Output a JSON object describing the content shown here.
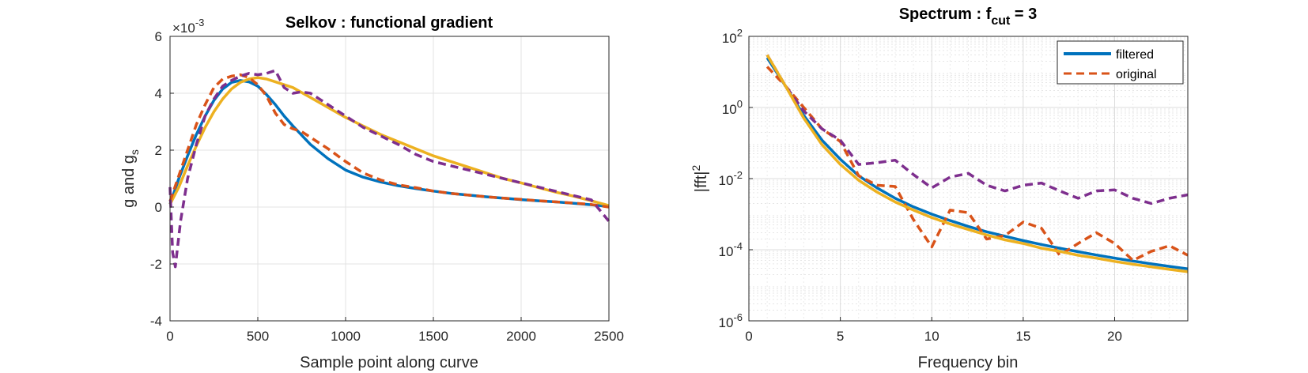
{
  "chart_data": [
    {
      "type": "line",
      "title": "Selkov : functional gradient",
      "xlabel": "Sample point along curve",
      "ylabel_main": "g and g",
      "ylabel_sub": "s",
      "y_exponent_label": "×10",
      "y_exponent_power": "-3",
      "xlim": [
        0,
        2500
      ],
      "ylim": [
        -4,
        6
      ],
      "xticks": [
        "0",
        "500",
        "1000",
        "1500",
        "2000",
        "2500"
      ],
      "yticks": [
        "-4",
        "-2",
        "0",
        "2",
        "4",
        "6"
      ],
      "grid": true,
      "legend": "none",
      "series": [
        {
          "color": "#0072BD",
          "style": "solid",
          "x": [
            0,
            50,
            100,
            150,
            200,
            250,
            300,
            350,
            400,
            450,
            500,
            550,
            600,
            650,
            700,
            800,
            900,
            1000,
            1100,
            1200,
            1300,
            1400,
            1500,
            1600,
            1700,
            1800,
            1900,
            2000,
            2100,
            2200,
            2300,
            2400,
            2500
          ],
          "y": [
            0.1,
            1.0,
            1.8,
            2.55,
            3.2,
            3.75,
            4.15,
            4.38,
            4.45,
            4.4,
            4.25,
            3.95,
            3.6,
            3.2,
            2.85,
            2.2,
            1.7,
            1.3,
            1.05,
            0.88,
            0.75,
            0.65,
            0.56,
            0.48,
            0.42,
            0.36,
            0.31,
            0.26,
            0.22,
            0.18,
            0.13,
            0.08,
            0.02
          ]
        },
        {
          "color": "#EDB120",
          "style": "solid",
          "x": [
            0,
            50,
            100,
            150,
            200,
            250,
            300,
            350,
            400,
            450,
            500,
            550,
            600,
            700,
            800,
            900,
            1000,
            1100,
            1200,
            1300,
            1400,
            1500,
            1600,
            1700,
            1800,
            1900,
            2000,
            2100,
            2200,
            2300,
            2400,
            2500
          ],
          "y": [
            0.1,
            0.7,
            1.45,
            2.15,
            2.8,
            3.35,
            3.8,
            4.15,
            4.38,
            4.5,
            4.55,
            4.5,
            4.4,
            4.2,
            3.85,
            3.5,
            3.15,
            2.85,
            2.55,
            2.3,
            2.05,
            1.8,
            1.6,
            1.4,
            1.2,
            1.0,
            0.85,
            0.68,
            0.52,
            0.38,
            0.22,
            0.05
          ]
        },
        {
          "color": "#D95319",
          "style": "dashed",
          "x": [
            0,
            50,
            100,
            150,
            200,
            250,
            300,
            350,
            400,
            450,
            500,
            550,
            600,
            650,
            700,
            750,
            800,
            850,
            900,
            1000,
            1100,
            1200,
            1300,
            1400,
            1500,
            1600,
            1700,
            1800,
            1900,
            2000,
            2100,
            2200,
            2300,
            2400,
            2500
          ],
          "y": [
            0.2,
            1.1,
            2.0,
            2.9,
            3.6,
            4.2,
            4.5,
            4.6,
            4.65,
            4.55,
            4.3,
            3.9,
            3.3,
            2.9,
            2.75,
            2.65,
            2.45,
            2.25,
            2.05,
            1.6,
            1.2,
            0.95,
            0.78,
            0.68,
            0.56,
            0.48,
            0.42,
            0.36,
            0.31,
            0.27,
            0.22,
            0.18,
            0.14,
            0.09,
            0.0
          ]
        },
        {
          "color": "#7E2F8E",
          "style": "dashed",
          "x": [
            0,
            15,
            30,
            60,
            100,
            150,
            200,
            250,
            300,
            350,
            400,
            450,
            500,
            550,
            600,
            650,
            700,
            750,
            800,
            850,
            900,
            950,
            1000,
            1100,
            1200,
            1300,
            1400,
            1500,
            1600,
            1700,
            1800,
            1900,
            2000,
            2100,
            2200,
            2300,
            2400,
            2500
          ],
          "y": [
            0.7,
            -1.6,
            -2.1,
            -0.5,
            1.0,
            2.2,
            3.2,
            3.8,
            4.25,
            4.45,
            4.6,
            4.7,
            4.65,
            4.7,
            4.8,
            4.2,
            4.0,
            4.05,
            4.0,
            3.8,
            3.6,
            3.4,
            3.2,
            2.8,
            2.5,
            2.2,
            1.85,
            1.6,
            1.45,
            1.3,
            1.15,
            1.0,
            0.85,
            0.7,
            0.55,
            0.4,
            0.25,
            -0.5
          ]
        }
      ]
    },
    {
      "type": "line",
      "title_main": "Spectrum : f",
      "title_sub": "cut",
      "title_tail": " = 3",
      "xlabel": "Frequency bin",
      "ylabel_main": "|fft|",
      "ylabel_sup": "2",
      "yscale": "log",
      "xlim": [
        0,
        24
      ],
      "ylim": [
        1e-06,
        100
      ],
      "xticks": [
        "0",
        "5",
        "10",
        "15",
        "20"
      ],
      "ytick_base": "10",
      "ytick_exponents": [
        "-6",
        "-4",
        "-2",
        "0",
        "2"
      ],
      "grid": true,
      "legend": "top-right",
      "series": [
        {
          "name": "filtered",
          "color": "#0072BD",
          "style": "solid",
          "x": [
            1,
            2,
            3,
            4,
            5,
            6,
            7,
            8,
            9,
            10,
            11,
            12,
            13,
            14,
            15,
            16,
            17,
            18,
            19,
            20,
            21,
            22,
            23,
            24
          ],
          "y": [
            25,
            4,
            0.6,
            0.12,
            0.035,
            0.012,
            0.0055,
            0.0028,
            0.0016,
            0.001,
            0.00066,
            0.00045,
            0.00032,
            0.00024,
            0.00018,
            0.00014,
            0.00011,
            8.8e-05,
            7.1e-05,
            5.8e-05,
            4.8e-05,
            4e-05,
            3.4e-05,
            2.9e-05
          ]
        },
        {
          "name": "original",
          "color": "#D95319",
          "style": "dashed",
          "x": [
            1,
            2,
            3,
            4,
            5,
            6,
            7,
            8,
            9,
            10,
            11,
            12,
            13,
            14,
            15,
            16,
            17,
            18,
            19,
            20,
            21,
            22,
            23,
            24
          ],
          "y": [
            14,
            4,
            1.0,
            0.25,
            0.11,
            0.012,
            0.0065,
            0.006,
            0.0007,
            0.00012,
            0.0013,
            0.0011,
            0.0002,
            0.00025,
            0.0006,
            0.0004,
            7e-05,
            0.00015,
            0.0003,
            0.00015,
            5e-05,
            9e-05,
            0.00013,
            7e-05
          ]
        },
        {
          "color": "#7E2F8E",
          "style": "dashed",
          "x": [
            1,
            2,
            3,
            4,
            5,
            6,
            7,
            8,
            9,
            10,
            11,
            12,
            13,
            14,
            15,
            16,
            17,
            18,
            19,
            20,
            21,
            22,
            23,
            24
          ],
          "y": [
            30,
            4,
            0.8,
            0.25,
            0.12,
            0.025,
            0.028,
            0.033,
            0.013,
            0.0055,
            0.011,
            0.014,
            0.0065,
            0.0045,
            0.0065,
            0.0075,
            0.0045,
            0.0028,
            0.0045,
            0.0048,
            0.0028,
            0.002,
            0.0028,
            0.0035
          ]
        },
        {
          "color": "#EDB120",
          "style": "solid",
          "x": [
            1,
            2,
            3,
            4,
            5,
            6,
            7,
            8,
            9,
            10,
            11,
            12,
            13,
            14,
            15,
            16,
            17,
            18,
            19,
            20,
            21,
            22,
            23,
            24
          ],
          "y": [
            30,
            4,
            0.5,
            0.09,
            0.025,
            0.009,
            0.0042,
            0.0022,
            0.0013,
            0.0008,
            0.00053,
            0.00037,
            0.00026,
            0.00019,
            0.00015,
            0.00011,
            9e-05,
            7e-05,
            5.8e-05,
            4.7e-05,
            3.9e-05,
            3.3e-05,
            2.8e-05,
            2.4e-05
          ]
        }
      ]
    }
  ]
}
